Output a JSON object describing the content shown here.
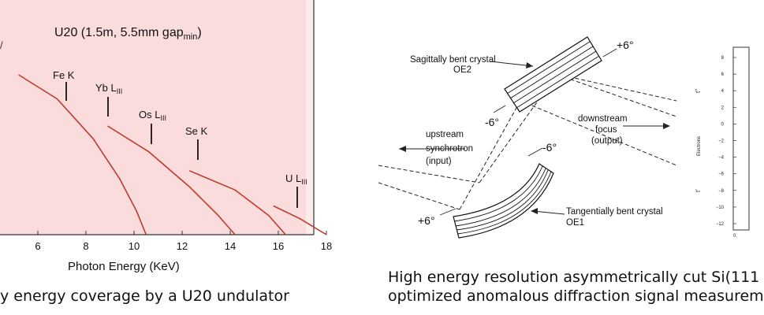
{
  "left_panel": {
    "title": "U20 (1.5m, 5.5mm gap",
    "title_sub": "min",
    "title_close": ")",
    "xlabel": "Photon Energy  (KeV)",
    "x_ticks": [
      "6",
      "8",
      "10",
      "12",
      "14",
      "16",
      "18"
    ],
    "markers": [
      {
        "label": "Fe K",
        "sub": ""
      },
      {
        "label": "Yb L",
        "sub": "III"
      },
      {
        "label": "Os L",
        "sub": "III"
      },
      {
        "label": "Se K",
        "sub": ""
      },
      {
        "label": "U L",
        "sub": "III"
      }
    ],
    "caption": "y energy coverage by a U20 undulator",
    "background_color": "#fbdcdd",
    "curve_color": "#c0392b"
  },
  "chart_data": {
    "type": "line",
    "xlabel": "Photon Energy  (KeV)",
    "xlim": [
      4.2,
      18
    ],
    "series": [
      {
        "x": [
          5.2,
          6.8,
          8.3,
          9.4,
          10.1,
          10.5
        ],
        "y": [
          1.0,
          0.85,
          0.6,
          0.35,
          0.15,
          0.0
        ]
      },
      {
        "x": [
          8.9,
          10.6,
          12.3,
          13.5,
          14.2
        ],
        "y": [
          0.68,
          0.52,
          0.3,
          0.12,
          0.0
        ]
      },
      {
        "x": [
          12.3,
          14.2,
          15.6,
          16.3
        ],
        "y": [
          0.4,
          0.28,
          0.12,
          0.0
        ]
      },
      {
        "x": [
          15.8,
          16.9,
          18.0
        ],
        "y": [
          0.18,
          0.1,
          0.0
        ]
      }
    ]
  },
  "diagram": {
    "oe2_label_1": "Sagittally bent crystal",
    "oe2_label_2": "OE2",
    "oe1_label_1": "Tangentially bent crystal",
    "oe1_label_2": "OE1",
    "upstream_1": "upstream",
    "upstream_2": "synchrotron",
    "upstream_3": "(input)",
    "downstream_1": "downstream",
    "downstream_2": "focus",
    "downstream_3": "(output)",
    "angles": [
      "+6°",
      "-6°",
      "-6°",
      "+6°"
    ]
  },
  "right_panel": {
    "y_ticks": [
      "8",
      "6",
      "4",
      "2",
      "0",
      "−2",
      "−4",
      "−6",
      "−8",
      "−10",
      "−12"
    ],
    "y_label_top": "t\"",
    "y_label_mid": "Electrons",
    "y_label_bot": "t'",
    "x_tick_first": "0."
  },
  "right_caption_1": "High energy resolution asymmetrically cut Si(111",
  "right_caption_2": "optimized anomalous diffraction signal measurem"
}
